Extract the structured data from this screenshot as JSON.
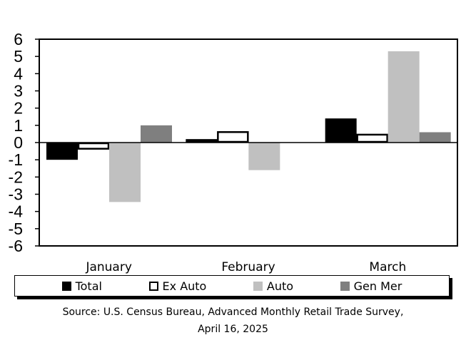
{
  "chart_data": {
    "type": "bar",
    "categories": [
      "January",
      "February",
      "March"
    ],
    "series": [
      {
        "name": "Total",
        "values": [
          -1.0,
          0.2,
          1.4
        ],
        "color": "#000000",
        "outline": "#000000"
      },
      {
        "name": "Ex Auto",
        "values": [
          -0.4,
          0.65,
          0.5
        ],
        "color": "#ffffff",
        "outline": "#000000"
      },
      {
        "name": "Auto",
        "values": [
          -3.45,
          -1.6,
          5.3
        ],
        "color": "#c0c0c0",
        "outline": "#c0c0c0"
      },
      {
        "name": "Gen Mer",
        "values": [
          1.0,
          0.0,
          0.6
        ],
        "color": "#7f7f7f",
        "outline": "#7f7f7f"
      }
    ],
    "ylim": [
      -6,
      6
    ],
    "yticks": [
      "6",
      "5",
      "4",
      "3",
      "2",
      "1",
      "0",
      "-1",
      "-2",
      "-3",
      "-4",
      "-5",
      "-6"
    ],
    "title": "",
    "xlabel": "",
    "ylabel": "",
    "grid": false,
    "legend_position": "bottom"
  },
  "source": {
    "line1": "Source: U.S. Census Bureau, Advanced Monthly Retail Trade Survey,",
    "line2": "April 16, 2025"
  }
}
